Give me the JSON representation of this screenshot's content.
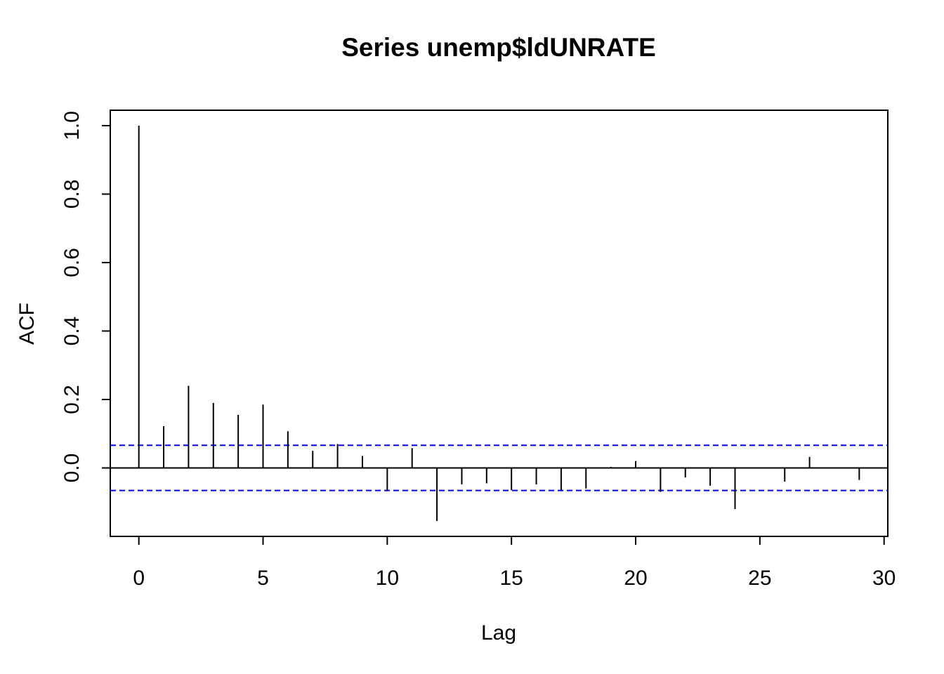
{
  "chart_data": {
    "type": "bar",
    "title": "Series  unemp$ldUNRATE",
    "xlabel": "Lag",
    "ylabel": "ACF",
    "xlim": [
      -1.15,
      30.15
    ],
    "ylim": [
      -0.2,
      1.045
    ],
    "x_ticks": [
      "0",
      "5",
      "10",
      "15",
      "20",
      "25",
      "30"
    ],
    "x_tick_values": [
      0,
      5,
      10,
      15,
      20,
      25,
      30
    ],
    "y_ticks": [
      "0.0",
      "0.2",
      "0.4",
      "0.6",
      "0.8",
      "1.0"
    ],
    "y_tick_values": [
      0.0,
      0.2,
      0.4,
      0.6,
      0.8,
      1.0
    ],
    "lags": [
      0,
      1,
      2,
      3,
      4,
      5,
      6,
      7,
      8,
      9,
      10,
      11,
      12,
      13,
      14,
      15,
      16,
      17,
      18,
      19,
      20,
      21,
      22,
      23,
      24,
      25,
      26,
      27,
      28,
      29
    ],
    "acf": [
      1.0,
      0.122,
      0.24,
      0.19,
      0.155,
      0.185,
      0.107,
      0.05,
      0.07,
      0.035,
      -0.068,
      0.058,
      -0.155,
      -0.048,
      -0.045,
      -0.065,
      -0.048,
      -0.065,
      -0.06,
      0.003,
      0.02,
      -0.07,
      -0.028,
      -0.052,
      -0.12,
      0.002,
      -0.04,
      0.032,
      -0.001,
      -0.035
    ],
    "confidence_bound": 0.066,
    "colors": {
      "bars": "#000000",
      "zero_line": "#000000",
      "confidence_lines": "#0000FF"
    }
  }
}
